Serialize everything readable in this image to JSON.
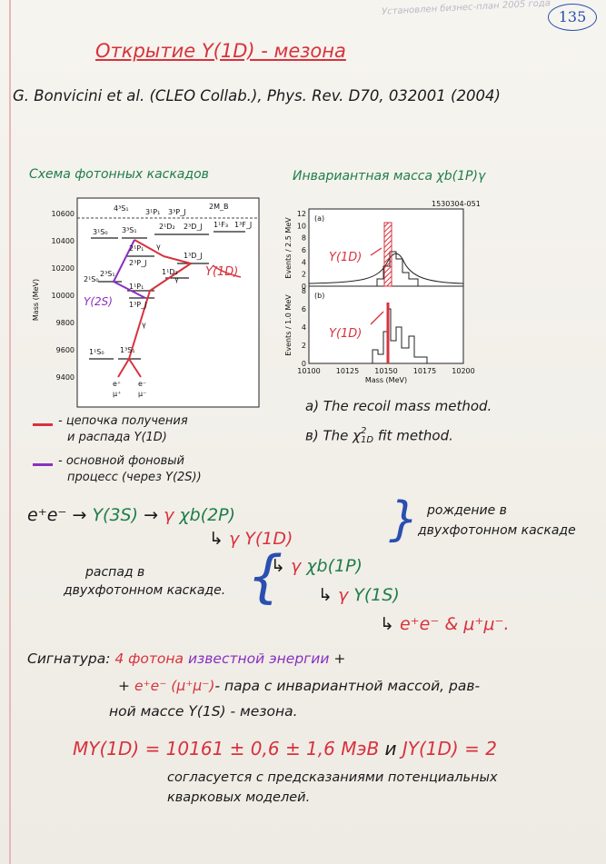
{
  "header": {
    "page_number": "135",
    "faint_text": "Установлен бизнес-план 2005 года"
  },
  "title": "Открытие Υ(1D) - мезона",
  "reference": "G. Bonvicini et al. (CLEO Collab.), Phys. Rev. D70, 032001 (2004)",
  "left_heading": "Схема фотонных каскадов",
  "right_heading": "Инвариантная масса χb(1P)γ",
  "level_diagram": {
    "y_ticks": [
      "10600",
      "10400",
      "10200",
      "10000",
      "9800",
      "9600",
      "9400"
    ],
    "y_label": "Mass (MeV)",
    "states": [
      "4³S₁",
      "3¹P₁",
      "3³P_J",
      "2M_B",
      "3¹S₀",
      "3³S₁",
      "2¹D₂",
      "2³D_J",
      "1¹F₃",
      "1³F_J",
      "2¹P₁",
      "2³P_J",
      "1³D_J",
      "2¹S₀",
      "2³S₁",
      "1¹D₂",
      "1¹P₁",
      "1³P_J",
      "1¹S₀",
      "1³S₁"
    ],
    "final": [
      "e⁺",
      "e⁻",
      "μ⁺",
      "μ⁻"
    ],
    "gamma": "γ",
    "ann_1d": "Υ(1D)",
    "ann_2s": "Υ(2S)"
  },
  "mass_plot": {
    "id": "1530304-051",
    "panel_a": "(a)",
    "panel_b": "(b)",
    "ylabel_a": "Events / 2.5 MeV",
    "ylabel_b": "Events / 1.0 MeV",
    "xlabel": "Mass (MeV)",
    "x_ticks": [
      "10100",
      "10125",
      "10150",
      "10175",
      "10200"
    ],
    "ya_ticks": [
      "0",
      "2",
      "4",
      "6",
      "8",
      "10",
      "12"
    ],
    "yb_ticks": [
      "0",
      "2",
      "4",
      "6",
      "8"
    ],
    "ann_a": "Υ(1D)",
    "ann_b": "Υ(1D)"
  },
  "methods": {
    "a": "a) The recoil mass method.",
    "b_pre": "в) The ",
    "b_chi": "χ",
    "b_sup": "2",
    "b_sub": "1D",
    "b_post": " fit method."
  },
  "legend": {
    "red_line1": "- цепочка получения",
    "red_line2": "и распада Υ(1D)",
    "purple_line1": "- основной фоновый",
    "purple_line2": "процесс (через Υ(2S))"
  },
  "chain": {
    "ee": "e⁺e⁻",
    "u3s": "Υ(3S)",
    "arrow": "→",
    "gamma": "γ",
    "chi2p": "χb(2P)",
    "hook": "↳",
    "u1d": "Υ(1D)",
    "chi1p": "χb(1P)",
    "u1s": "Υ(1S)",
    "leptons": "e⁺e⁻ & μ⁺μ⁻.",
    "birth1": "рождение в",
    "birth2": "двухфотонном каскаде",
    "decay1": "распад в",
    "decay2": "двухфотонном каскаде."
  },
  "signature": {
    "label": "Сигнатура:",
    "n_photons": "4 фотона",
    "known": "известной энергии",
    "plus": "+",
    "line2_plus": "+",
    "pair": "e⁺e⁻ (μ⁺μ⁻)",
    "line2_rest": "- пара с инвариантной массой, рав-",
    "line3": "ной массе Υ(1S) - мезона."
  },
  "result": {
    "mass_symbol": "MΥ(1D)",
    "mass_value": "= 10161 ± 0,6 ± 1,6 МэВ",
    "and": "и",
    "j_symbol": "JΥ(1D)",
    "j_value": "= 2",
    "note1": "согласуется с предсказаниями потенциальных",
    "note2": "кварковых моделей."
  }
}
